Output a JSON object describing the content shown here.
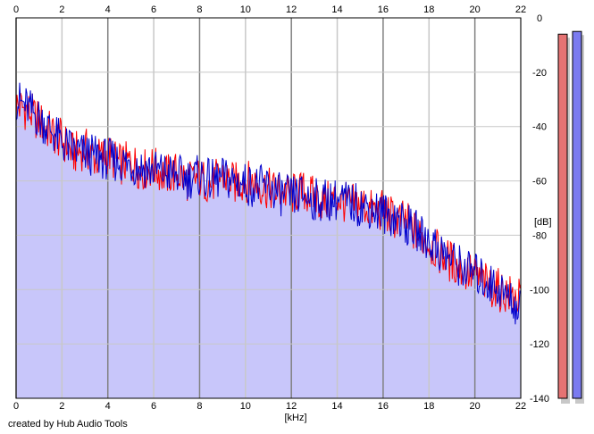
{
  "chart_data": {
    "type": "area",
    "xlabel": "[kHz]",
    "ylabel": "[dB]",
    "xlim": [
      0,
      22
    ],
    "ylim": [
      -140,
      0
    ],
    "x_ticks": [
      0,
      2,
      4,
      6,
      8,
      10,
      12,
      14,
      16,
      18,
      20,
      22
    ],
    "y_ticks": [
      0,
      -20,
      -40,
      -60,
      -80,
      -100,
      -120,
      -140
    ],
    "grid": true,
    "series": [
      {
        "color": "#ff0000",
        "x": [
          0,
          0.5,
          1,
          1.5,
          2,
          2.5,
          3,
          3.5,
          4,
          4.5,
          5,
          5.5,
          6,
          6.5,
          7,
          7.5,
          8,
          8.5,
          9,
          9.5,
          10,
          10.5,
          11,
          11.5,
          12,
          12.5,
          13,
          13.5,
          14,
          14.5,
          15,
          15.5,
          16,
          16.5,
          17,
          17.5,
          18,
          18.5,
          19,
          19.5,
          20,
          20.5,
          21,
          21.5,
          22
        ],
        "values": [
          -32,
          -34,
          -38,
          -42,
          -45,
          -50,
          -48,
          -52,
          -50,
          -54,
          -53,
          -56,
          -55,
          -58,
          -57,
          -60,
          -59,
          -61,
          -58,
          -61,
          -60,
          -61,
          -63,
          -64,
          -65,
          -64,
          -66,
          -68,
          -66,
          -69,
          -68,
          -71,
          -71,
          -74,
          -75,
          -80,
          -83,
          -87,
          -90,
          -93,
          -95,
          -98,
          -100,
          -102,
          -104
        ]
      },
      {
        "color": "#0000cc",
        "x": [
          0,
          0.5,
          1,
          1.5,
          2,
          2.5,
          3,
          3.5,
          4,
          4.5,
          5,
          5.5,
          6,
          6.5,
          7,
          7.5,
          8,
          8.5,
          9,
          9.5,
          10,
          10.5,
          11,
          11.5,
          12,
          12.5,
          13,
          13.5,
          14,
          14.5,
          15,
          15.5,
          16,
          16.5,
          17,
          17.5,
          18,
          18.5,
          19,
          19.5,
          20,
          20.5,
          21,
          21.5,
          22
        ],
        "values": [
          -30,
          -33,
          -37,
          -41,
          -46,
          -49,
          -50,
          -51,
          -52,
          -53,
          -54,
          -55,
          -56,
          -57,
          -58,
          -59,
          -58,
          -60,
          -59,
          -60,
          -61,
          -62,
          -62,
          -65,
          -66,
          -65,
          -67,
          -67,
          -67,
          -68,
          -69,
          -70,
          -72,
          -73,
          -76,
          -79,
          -82,
          -86,
          -89,
          -92,
          -94,
          -97,
          -99,
          -103,
          -108
        ]
      }
    ],
    "level_meters": [
      {
        "color": "#e57373",
        "value": -6
      },
      {
        "color": "#7b7bf0",
        "value": -5
      }
    ]
  },
  "footer": {
    "credit": "created by Hub Audio Tools"
  },
  "colors": {
    "area_fill": "#c8c6fa",
    "grid_light": "#c8c8c8",
    "grid_dark": "#808080"
  }
}
